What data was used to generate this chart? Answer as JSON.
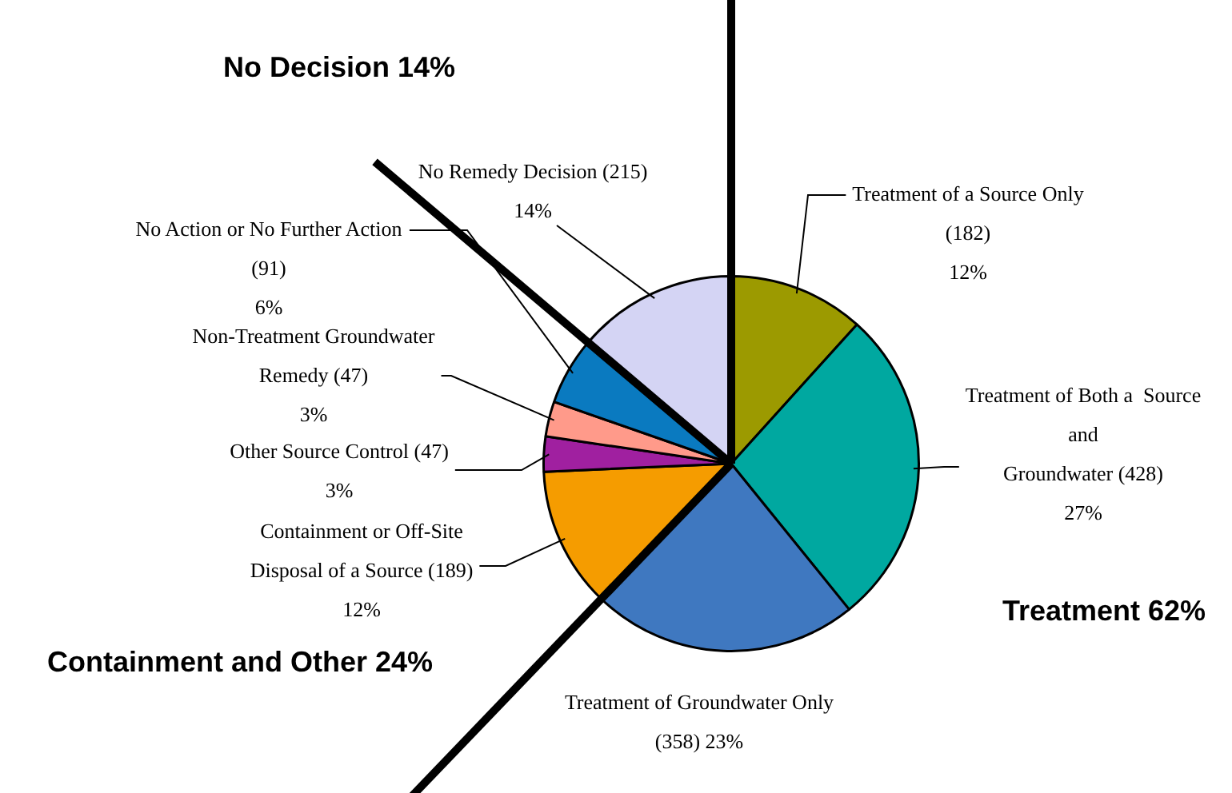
{
  "chart_data": {
    "type": "pie",
    "categories": [
      "Treatment of a Source Only",
      "Treatment of Both a  Source and Groundwater",
      "Treatment of Groundwater Only",
      "Containment or Off-Site Disposal of a Source",
      "Other Source Control",
      "Non-Treatment Groundwater Remedy",
      "No Action or No Further Action",
      "No Remedy Decision"
    ],
    "values": [
      182,
      428,
      358,
      189,
      47,
      47,
      91,
      215
    ],
    "colors": [
      "#9c9a00",
      "#00a8a0",
      "#3f78c0",
      "#f59c00",
      "#a020a0",
      "#ff9a8a",
      "#0a7ac0",
      "#d4d4f4"
    ],
    "value_labels": [
      "(182) 12%",
      "(428) 27%",
      "(358) 23%",
      "(189) 12%",
      "(47) 3%",
      "(47) 3%",
      "(91) 6%",
      "(215) 14%"
    ],
    "annotations": [
      "No Decision 14%",
      "Treatment 62%",
      "Containment and Other 24%"
    ],
    "legend": false
  }
}
